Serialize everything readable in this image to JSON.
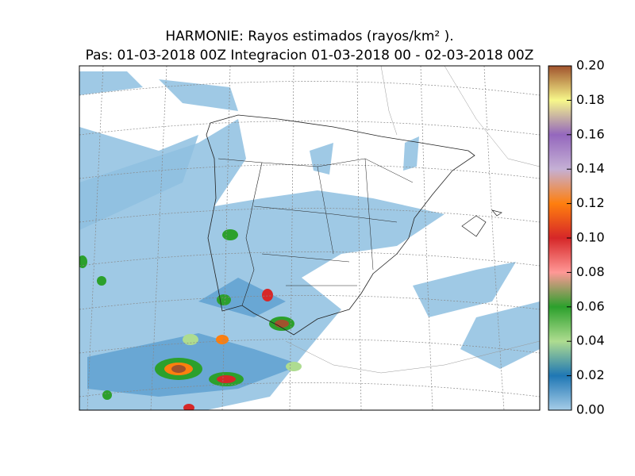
{
  "title": [
    "HARMONIE: Rayos estimados  (rayos/km² ).",
    "Pas: 01-03-2018 00Z Integracion 01-03-2018 00 - 02-03-2018 00Z"
  ],
  "colorbar": {
    "clim": [
      0,
      0.2
    ],
    "ticks": [
      {
        "value": 0,
        "label": "0.00"
      },
      {
        "value": 0.02,
        "label": "0.02"
      },
      {
        "value": 0.04,
        "label": "0.04"
      },
      {
        "value": 0.06,
        "label": "0.06"
      },
      {
        "value": 0.08,
        "label": "0.08"
      },
      {
        "value": 0.1,
        "label": "0.10"
      },
      {
        "value": 0.12,
        "label": "0.12"
      },
      {
        "value": 0.14,
        "label": "0.14"
      },
      {
        "value": 0.16,
        "label": "0.16"
      },
      {
        "value": 0.18,
        "label": "0.18"
      },
      {
        "value": 0.2,
        "label": "0.20"
      }
    ]
  }
}
